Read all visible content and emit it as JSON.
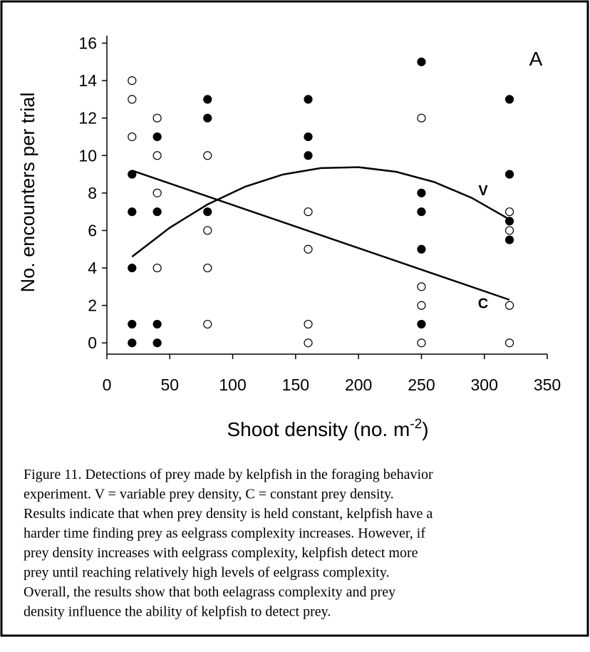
{
  "chart_data": {
    "type": "scatter",
    "panel_label": "A",
    "ylabel": "No. encounters per trial",
    "xlabel": [
      "Shoot density (no. m",
      "-2",
      ")"
    ],
    "xlim": [
      0,
      350
    ],
    "xticks": [
      0,
      50,
      100,
      150,
      200,
      250,
      300,
      350
    ],
    "ylim": [
      -0.6,
      16.4
    ],
    "yticks": [
      0,
      2,
      4,
      6,
      8,
      10,
      12,
      14,
      16
    ],
    "series": [
      {
        "marker": "filled",
        "color": "#000000",
        "x": [
          20,
          20,
          20,
          20,
          20,
          40,
          40,
          40,
          40,
          80,
          80,
          80,
          160,
          160,
          160,
          250,
          250,
          250,
          250,
          250,
          320,
          320,
          320,
          320
        ],
        "values": [
          0,
          1,
          4,
          7,
          9,
          0,
          1,
          7,
          11,
          7,
          12,
          13,
          10,
          11,
          13,
          1,
          5,
          7,
          8,
          15,
          5.5,
          6.5,
          9,
          13
        ]
      },
      {
        "marker": "open",
        "color": "#000000",
        "x": [
          20,
          20,
          20,
          40,
          40,
          40,
          40,
          80,
          80,
          80,
          80,
          160,
          160,
          160,
          160,
          250,
          250,
          250,
          250,
          320,
          320,
          320,
          320
        ],
        "values": [
          14,
          13,
          11,
          12,
          10,
          8,
          4,
          10,
          6,
          4,
          1,
          7,
          5,
          1,
          0,
          12,
          3,
          2,
          0,
          7,
          6,
          2,
          0
        ]
      }
    ],
    "fits": [
      {
        "name": "V",
        "color": "#000000",
        "x": [
          20,
          50,
          80,
          110,
          140,
          170,
          200,
          230,
          260,
          290,
          320
        ],
        "values": [
          4.6,
          6.15,
          7.39,
          8.34,
          8.99,
          9.33,
          9.38,
          9.13,
          8.59,
          7.74,
          6.59
        ]
      },
      {
        "name": "C",
        "color": "#000000",
        "x": [
          20,
          320
        ],
        "values": [
          9.2,
          2.3
        ]
      }
    ],
    "caption": [
      "Figure 11. Detections of prey made by kelpfish in the foraging behavior",
      "experiment. V = variable prey density, C = constant prey density.",
      "Results indicate that when prey density is held constant, kelpfish have a",
      "harder time finding prey as eelgrass complexity increases.  However, if",
      "prey density increases with eelgrass complexity, kelpfish detect more",
      "prey until reaching relatively high levels of eelgrass complexity.",
      "Overall, the results show that both eelagrass complexity and prey",
      "density influence the ability of kelpfish to detect prey."
    ]
  }
}
